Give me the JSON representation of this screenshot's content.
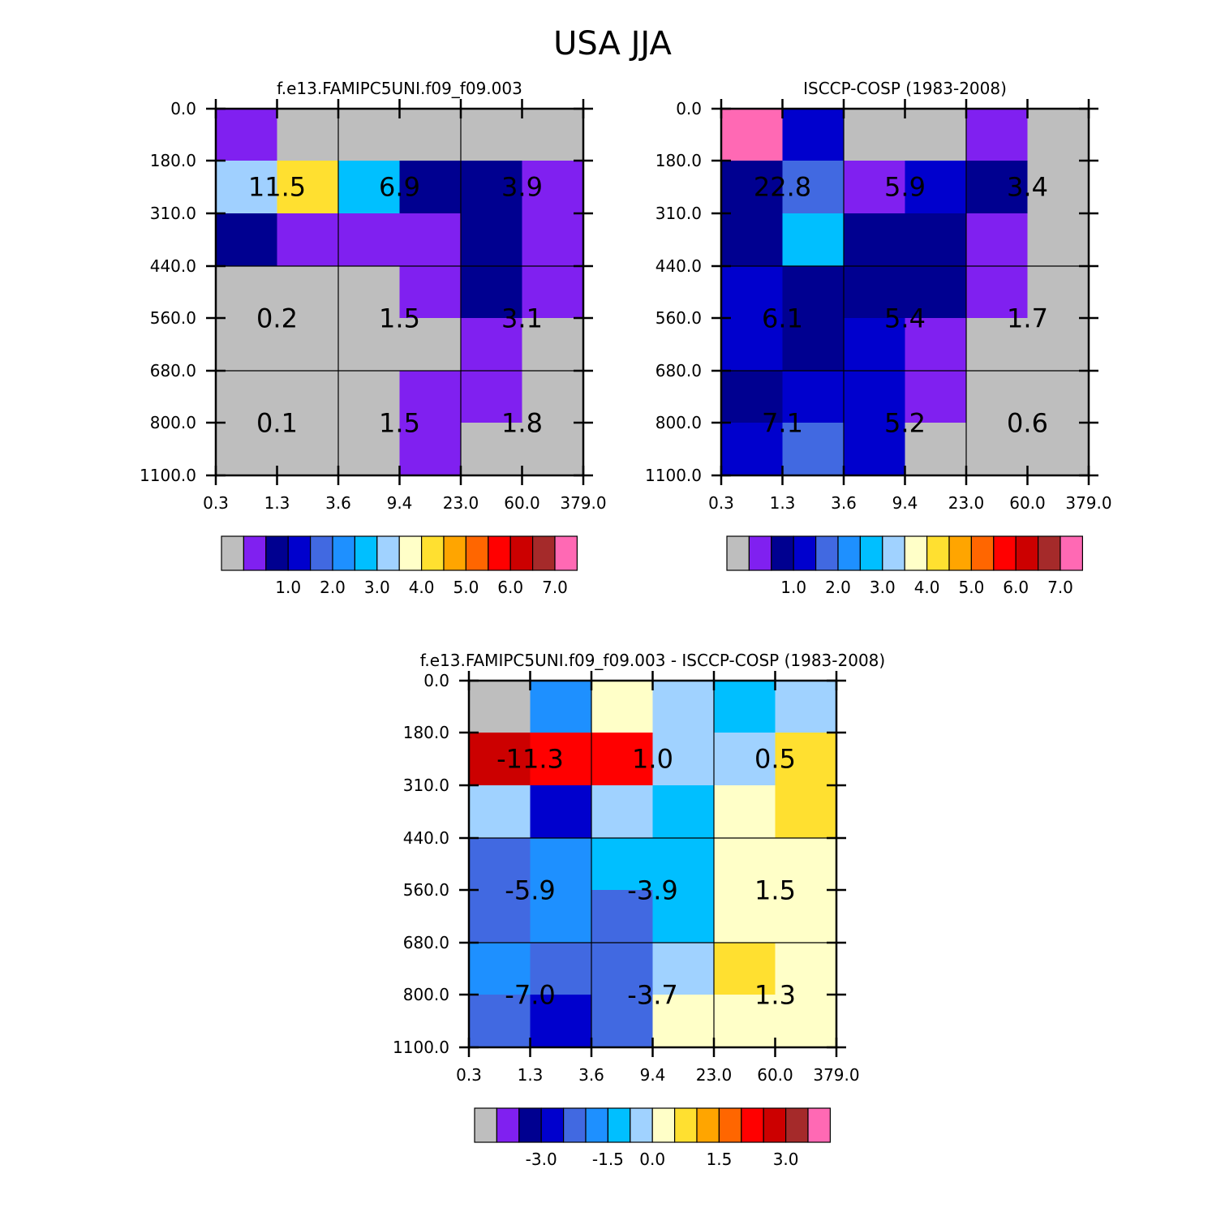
{
  "figure": {
    "title": "USA  JJA"
  },
  "chart_data": [
    {
      "type": "heatmap",
      "title": "f.e13.FAMIPC5UNI.f09_f09.003",
      "x_ticks": [
        "0.3",
        "1.3",
        "3.6",
        "9.4",
        "23.0",
        "60.0",
        "379.0"
      ],
      "y_ticks": [
        "0.0",
        "180.0",
        "310.0",
        "440.0",
        "560.0",
        "680.0",
        "800.0",
        "1100.0"
      ],
      "grid": true,
      "cell_colors": [
        [
          "#8020f0",
          "#bebebe",
          "#bebebe",
          "#bebebe",
          "#bebebe",
          "#bebebe"
        ],
        [
          "#a0d0ff",
          "#ffe030",
          "#00c0ff",
          "#000090",
          "#000090",
          "#8020f0"
        ],
        [
          "#000090",
          "#8020f0",
          "#8020f0",
          "#8020f0",
          "#000090",
          "#8020f0"
        ],
        [
          "#bebebe",
          "#bebebe",
          "#bebebe",
          "#8020f0",
          "#000090",
          "#8020f0"
        ],
        [
          "#bebebe",
          "#bebebe",
          "#bebebe",
          "#bebebe",
          "#8020f0",
          "#bebebe"
        ],
        [
          "#bebebe",
          "#bebebe",
          "#bebebe",
          "#8020f0",
          "#8020f0",
          "#bebebe"
        ],
        [
          "#bebebe",
          "#bebebe",
          "#bebebe",
          "#8020f0",
          "#bebebe",
          "#bebebe"
        ]
      ],
      "group_labels": [
        [
          "11.5",
          "6.9",
          "3.9"
        ],
        [
          "0.2",
          "1.5",
          "3.1"
        ],
        [
          "0.1",
          "1.5",
          "1.8"
        ]
      ],
      "colorbar": {
        "colors": [
          "#bebebe",
          "#8020f0",
          "#000090",
          "#0000cd",
          "#4169e1",
          "#1e90ff",
          "#00bfff",
          "#a0d2ff",
          "#ffffc8",
          "#ffe030",
          "#ffa500",
          "#ff6600",
          "#ff0000",
          "#cc0000",
          "#a52a2a",
          "#ff69b4"
        ],
        "labels": [
          "1.0",
          "2.0",
          "3.0",
          "4.0",
          "5.0",
          "6.0",
          "7.0"
        ],
        "label_boundaries": [
          3,
          5,
          7,
          9,
          11,
          13,
          15
        ]
      }
    },
    {
      "type": "heatmap",
      "title": "ISCCP-COSP (1983-2008)",
      "x_ticks": [
        "0.3",
        "1.3",
        "3.6",
        "9.4",
        "23.0",
        "60.0",
        "379.0"
      ],
      "y_ticks": [
        "0.0",
        "180.0",
        "310.0",
        "440.0",
        "560.0",
        "680.0",
        "800.0",
        "1100.0"
      ],
      "grid": true,
      "cell_colors": [
        [
          "#ff69b4",
          "#0000cd",
          "#bebebe",
          "#bebebe",
          "#8020f0",
          "#bebebe"
        ],
        [
          "#000090",
          "#4169e1",
          "#8020f0",
          "#0000cd",
          "#000090",
          "#bebebe"
        ],
        [
          "#000090",
          "#00bfff",
          "#000090",
          "#000090",
          "#8020f0",
          "#bebebe"
        ],
        [
          "#0000cd",
          "#000090",
          "#000090",
          "#000090",
          "#8020f0",
          "#bebebe"
        ],
        [
          "#0000cd",
          "#000090",
          "#0000cd",
          "#8020f0",
          "#bebebe",
          "#bebebe"
        ],
        [
          "#000090",
          "#0000cd",
          "#0000cd",
          "#8020f0",
          "#bebebe",
          "#bebebe"
        ],
        [
          "#0000cd",
          "#4169e1",
          "#0000cd",
          "#bebebe",
          "#bebebe",
          "#bebebe"
        ]
      ],
      "group_labels": [
        [
          "22.8",
          "5.9",
          "3.4"
        ],
        [
          "6.1",
          "5.4",
          "1.7"
        ],
        [
          "7.1",
          "5.2",
          "0.6"
        ]
      ],
      "colorbar": {
        "colors": [
          "#bebebe",
          "#8020f0",
          "#000090",
          "#0000cd",
          "#4169e1",
          "#1e90ff",
          "#00bfff",
          "#a0d2ff",
          "#ffffc8",
          "#ffe030",
          "#ffa500",
          "#ff6600",
          "#ff0000",
          "#cc0000",
          "#a52a2a",
          "#ff69b4"
        ],
        "labels": [
          "1.0",
          "2.0",
          "3.0",
          "4.0",
          "5.0",
          "6.0",
          "7.0"
        ],
        "label_boundaries": [
          3,
          5,
          7,
          9,
          11,
          13,
          15
        ]
      }
    },
    {
      "type": "heatmap",
      "title": "f.e13.FAMIPC5UNI.f09_f09.003 - ISCCP-COSP (1983-2008)",
      "x_ticks": [
        "0.3",
        "1.3",
        "3.6",
        "9.4",
        "23.0",
        "60.0",
        "379.0"
      ],
      "y_ticks": [
        "0.0",
        "180.0",
        "310.0",
        "440.0",
        "560.0",
        "680.0",
        "800.0",
        "1100.0"
      ],
      "grid": true,
      "cell_colors": [
        [
          "#bebebe",
          "#1e90ff",
          "#ffffc8",
          "#a0d2ff",
          "#00bfff",
          "#a0d2ff"
        ],
        [
          "#cc0000",
          "#ff0000",
          "#ff0000",
          "#a0d2ff",
          "#a0d2ff",
          "#ffe030"
        ],
        [
          "#a0d2ff",
          "#0000cd",
          "#a0d2ff",
          "#00bfff",
          "#ffffc8",
          "#ffe030"
        ],
        [
          "#4169e1",
          "#1e90ff",
          "#00bfff",
          "#00bfff",
          "#ffffc8",
          "#ffffc8"
        ],
        [
          "#4169e1",
          "#1e90ff",
          "#4169e1",
          "#00bfff",
          "#ffffc8",
          "#ffffc8"
        ],
        [
          "#1e90ff",
          "#4169e1",
          "#4169e1",
          "#a0d2ff",
          "#ffe030",
          "#ffffc8"
        ],
        [
          "#4169e1",
          "#0000cd",
          "#4169e1",
          "#ffffc8",
          "#ffffc8",
          "#ffffc8"
        ]
      ],
      "group_labels": [
        [
          "-11.3",
          "1.0",
          "0.5"
        ],
        [
          "-5.9",
          "-3.9",
          "1.5"
        ],
        [
          "-7.0",
          "-3.7",
          "1.3"
        ]
      ],
      "colorbar": {
        "colors": [
          "#bebebe",
          "#8020f0",
          "#000090",
          "#0000cd",
          "#4169e1",
          "#1e90ff",
          "#00bfff",
          "#a0d2ff",
          "#ffffc8",
          "#ffe030",
          "#ffa500",
          "#ff6600",
          "#ff0000",
          "#cc0000",
          "#a52a2a",
          "#ff69b4"
        ],
        "labels": [
          "-3.0",
          "-1.5",
          "0.0",
          "1.5",
          "3.0"
        ],
        "label_boundaries": [
          3,
          6,
          8,
          11,
          14
        ]
      }
    }
  ]
}
